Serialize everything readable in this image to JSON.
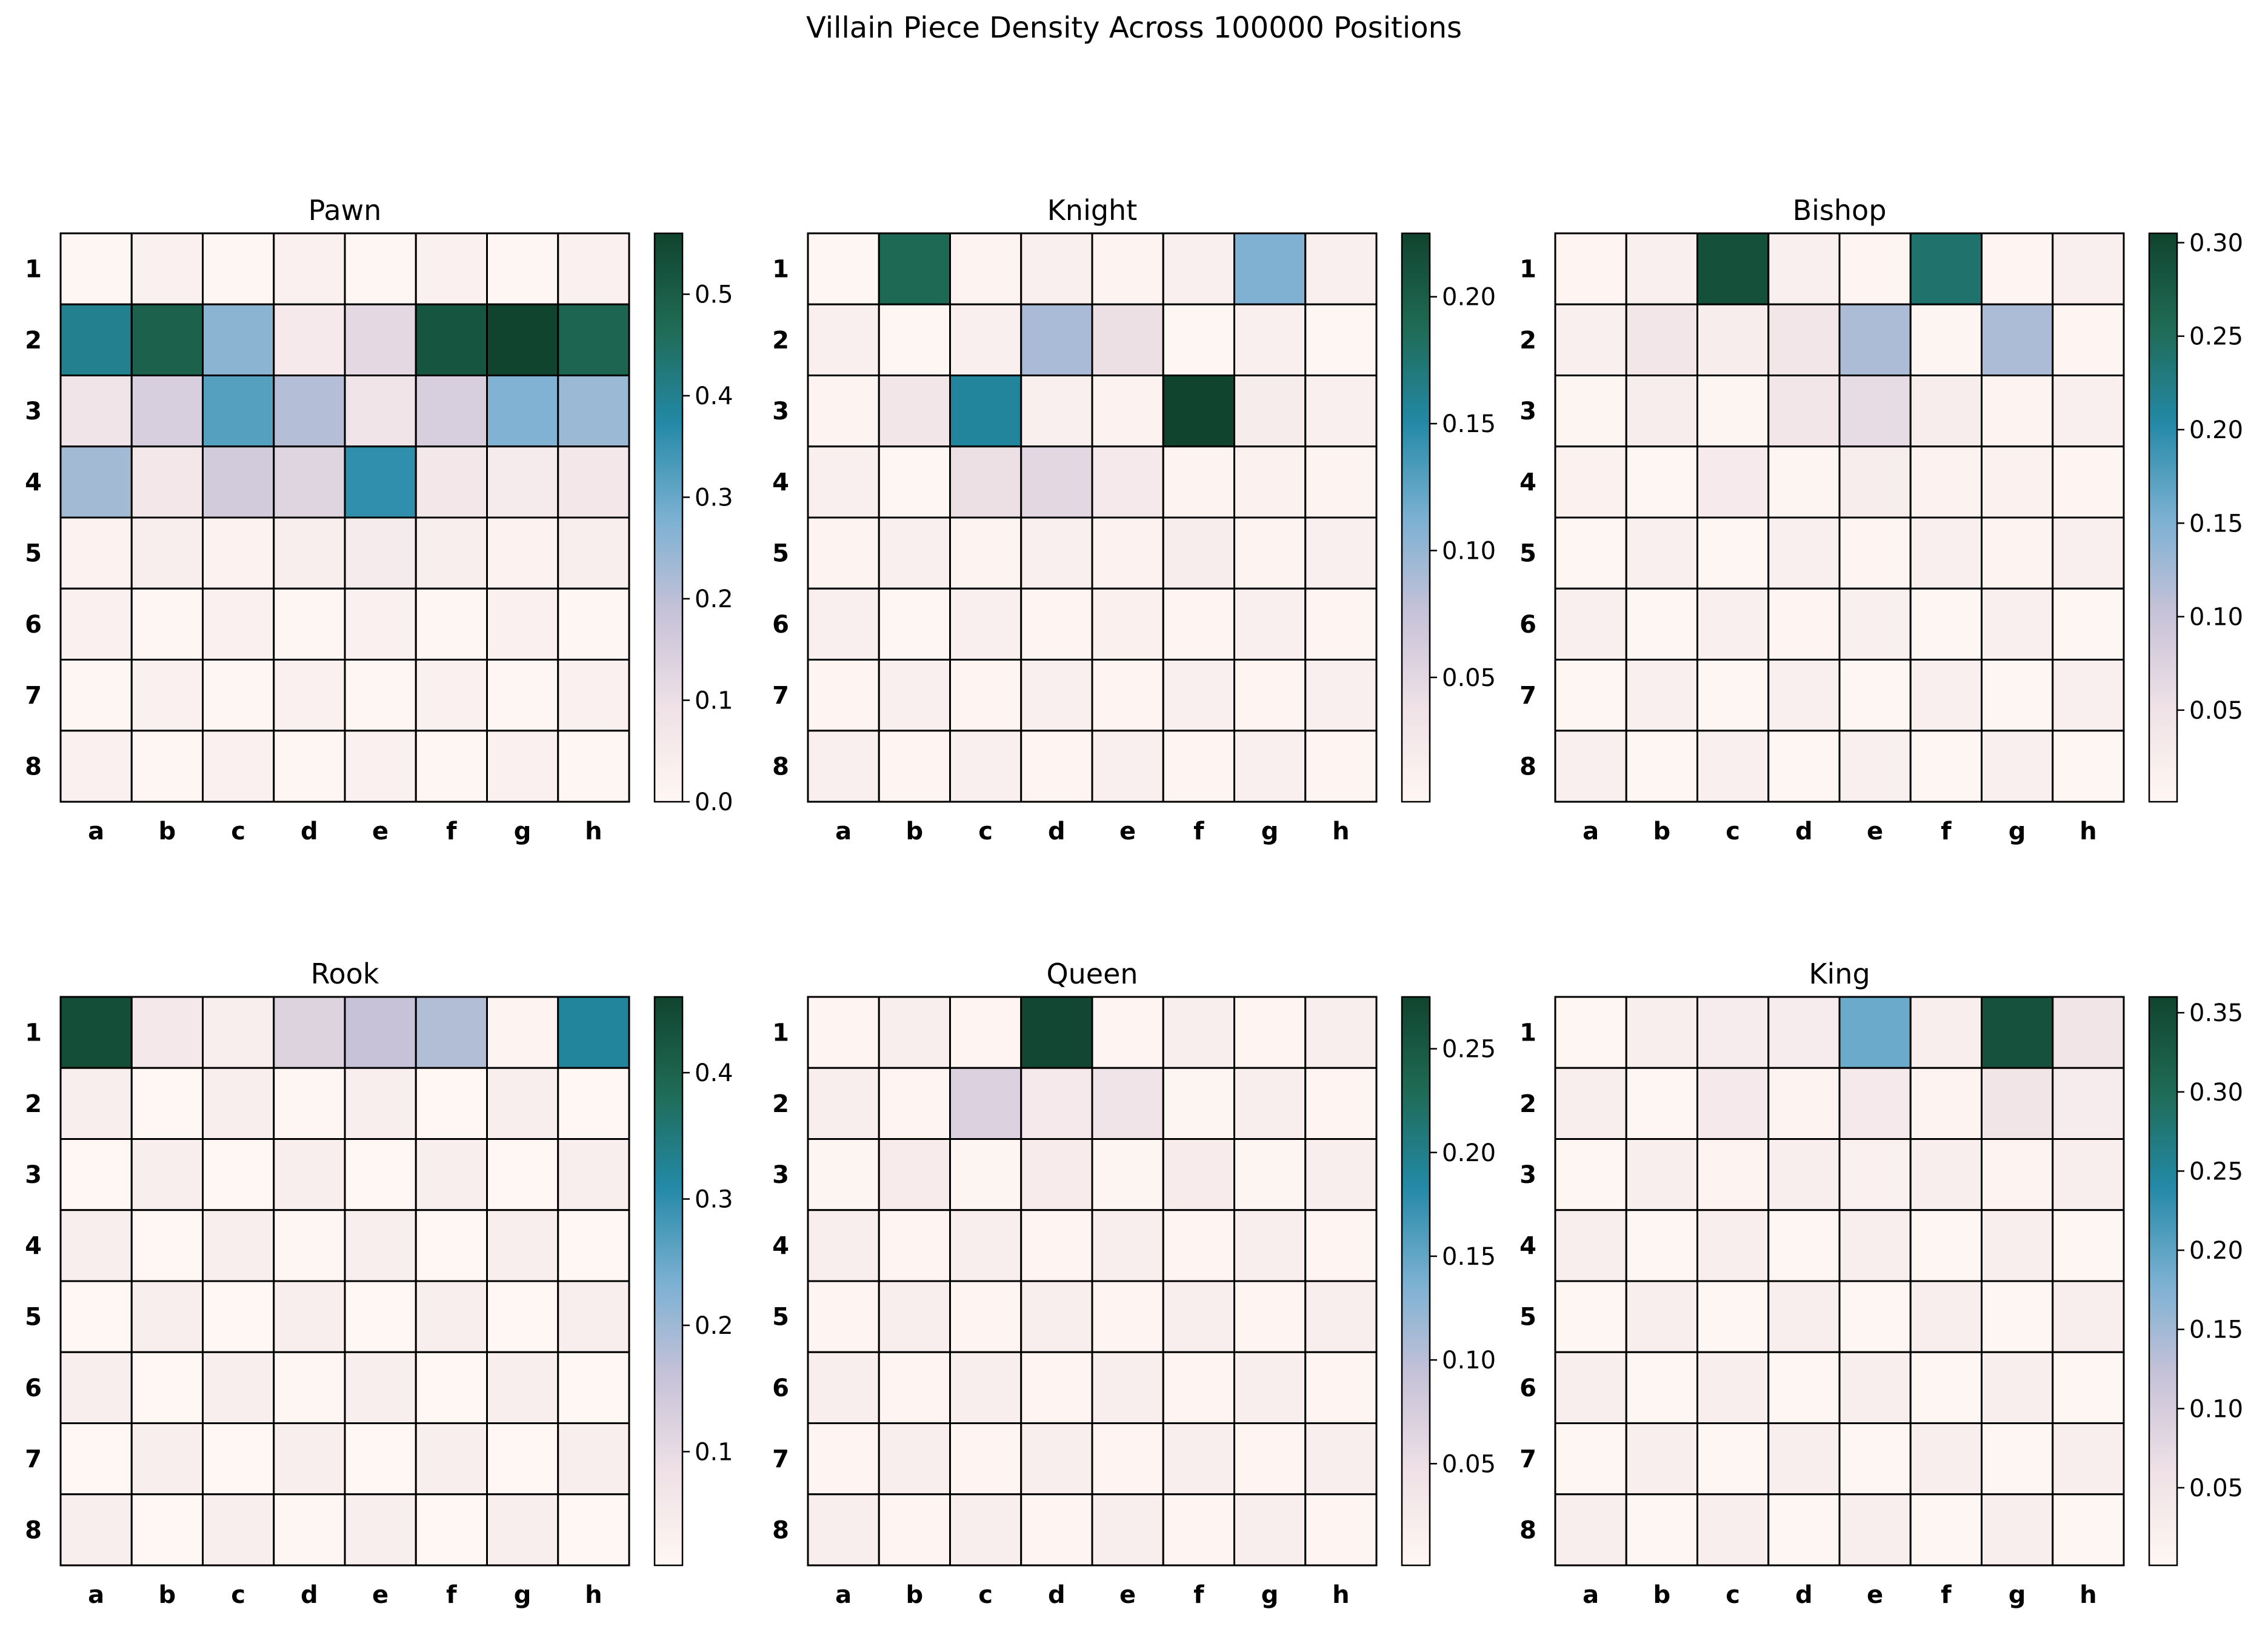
{
  "title": "Villain Piece Density Across 100000 Positions",
  "colormap": [
    "#fff7f3",
    "#efe1e6",
    "#c7c2d8",
    "#7ab0d2",
    "#2389a6",
    "#1f6b55",
    "#10442f"
  ],
  "chart_data": [
    {
      "type": "heatmap",
      "title": "Pawn",
      "x_labels": [
        "a",
        "b",
        "c",
        "d",
        "e",
        "f",
        "g",
        "h"
      ],
      "y_labels": [
        "1",
        "2",
        "3",
        "4",
        "5",
        "6",
        "7",
        "8"
      ],
      "vmin": 0.0,
      "vmax": 0.56,
      "colorbar_ticks": [
        "0.0",
        "0.1",
        "0.2",
        "0.3",
        "0.4",
        "0.5"
      ],
      "values": [
        [
          0.005,
          0.03,
          0.005,
          0.03,
          0.005,
          0.03,
          0.005,
          0.03
        ],
        [
          0.4,
          0.49,
          0.26,
          0.06,
          0.12,
          0.52,
          0.56,
          0.48
        ],
        [
          0.08,
          0.15,
          0.32,
          0.21,
          0.08,
          0.15,
          0.27,
          0.24
        ],
        [
          0.23,
          0.07,
          0.16,
          0.13,
          0.36,
          0.07,
          0.05,
          0.07
        ],
        [
          0.02,
          0.04,
          0.02,
          0.04,
          0.05,
          0.04,
          0.02,
          0.04
        ],
        [
          0.03,
          0.005,
          0.03,
          0.005,
          0.03,
          0.005,
          0.03,
          0.005
        ],
        [
          0.005,
          0.03,
          0.005,
          0.03,
          0.005,
          0.03,
          0.005,
          0.03
        ],
        [
          0.03,
          0.005,
          0.03,
          0.005,
          0.03,
          0.005,
          0.03,
          0.005
        ]
      ]
    },
    {
      "type": "heatmap",
      "title": "Knight",
      "x_labels": [
        "a",
        "b",
        "c",
        "d",
        "e",
        "f",
        "g",
        "h"
      ],
      "y_labels": [
        "1",
        "2",
        "3",
        "4",
        "5",
        "6",
        "7",
        "8"
      ],
      "vmin": 0.001,
      "vmax": 0.225,
      "colorbar_ticks": [
        "0.05",
        "0.10",
        "0.15",
        "0.20"
      ],
      "values": [
        [
          0.003,
          0.19,
          0.006,
          0.015,
          0.006,
          0.015,
          0.11,
          0.015
        ],
        [
          0.015,
          0.003,
          0.015,
          0.09,
          0.04,
          0.003,
          0.015,
          0.003
        ],
        [
          0.006,
          0.03,
          0.155,
          0.015,
          0.009,
          0.225,
          0.02,
          0.015
        ],
        [
          0.015,
          0.003,
          0.04,
          0.05,
          0.025,
          0.006,
          0.01,
          0.006
        ],
        [
          0.006,
          0.015,
          0.006,
          0.015,
          0.009,
          0.018,
          0.006,
          0.015
        ],
        [
          0.015,
          0.003,
          0.015,
          0.004,
          0.012,
          0.004,
          0.015,
          0.004
        ],
        [
          0.004,
          0.015,
          0.004,
          0.015,
          0.004,
          0.015,
          0.004,
          0.015
        ],
        [
          0.015,
          0.004,
          0.015,
          0.004,
          0.015,
          0.004,
          0.015,
          0.004
        ]
      ]
    },
    {
      "type": "heatmap",
      "title": "Bishop",
      "x_labels": [
        "a",
        "b",
        "c",
        "d",
        "e",
        "f",
        "g",
        "h"
      ],
      "y_labels": [
        "1",
        "2",
        "3",
        "4",
        "5",
        "6",
        "7",
        "8"
      ],
      "vmin": 0.001,
      "vmax": 0.305,
      "colorbar_ticks": [
        "0.05",
        "0.10",
        "0.15",
        "0.20",
        "0.25",
        "0.30"
      ],
      "values": [
        [
          0.005,
          0.02,
          0.29,
          0.02,
          0.005,
          0.24,
          0.005,
          0.02
        ],
        [
          0.02,
          0.04,
          0.025,
          0.04,
          0.12,
          0.006,
          0.12,
          0.005
        ],
        [
          0.006,
          0.025,
          0.006,
          0.04,
          0.06,
          0.025,
          0.008,
          0.02
        ],
        [
          0.015,
          0.004,
          0.03,
          0.006,
          0.025,
          0.01,
          0.015,
          0.005
        ],
        [
          0.004,
          0.02,
          0.004,
          0.02,
          0.005,
          0.02,
          0.008,
          0.02
        ],
        [
          0.02,
          0.004,
          0.02,
          0.005,
          0.02,
          0.004,
          0.02,
          0.004
        ],
        [
          0.004,
          0.02,
          0.004,
          0.02,
          0.004,
          0.02,
          0.004,
          0.02
        ],
        [
          0.02,
          0.004,
          0.02,
          0.004,
          0.02,
          0.004,
          0.02,
          0.004
        ]
      ]
    },
    {
      "type": "heatmap",
      "title": "Rook",
      "x_labels": [
        "a",
        "b",
        "c",
        "d",
        "e",
        "f",
        "g",
        "h"
      ],
      "y_labels": [
        "1",
        "2",
        "3",
        "4",
        "5",
        "6",
        "7",
        "8"
      ],
      "vmin": 0.01,
      "vmax": 0.46,
      "colorbar_ticks": [
        "0.1",
        "0.2",
        "0.3",
        "0.4"
      ],
      "values": [
        [
          0.44,
          0.06,
          0.04,
          0.12,
          0.16,
          0.18,
          0.02,
          0.32
        ],
        [
          0.04,
          0.01,
          0.04,
          0.015,
          0.04,
          0.01,
          0.04,
          0.01
        ],
        [
          0.01,
          0.04,
          0.01,
          0.04,
          0.01,
          0.04,
          0.01,
          0.04
        ],
        [
          0.04,
          0.01,
          0.04,
          0.015,
          0.04,
          0.01,
          0.04,
          0.01
        ],
        [
          0.01,
          0.04,
          0.01,
          0.04,
          0.01,
          0.04,
          0.01,
          0.04
        ],
        [
          0.04,
          0.01,
          0.04,
          0.015,
          0.04,
          0.01,
          0.04,
          0.01
        ],
        [
          0.01,
          0.04,
          0.01,
          0.04,
          0.01,
          0.04,
          0.01,
          0.04
        ],
        [
          0.04,
          0.01,
          0.04,
          0.015,
          0.04,
          0.01,
          0.04,
          0.01
        ]
      ]
    },
    {
      "type": "heatmap",
      "title": "Queen",
      "x_labels": [
        "a",
        "b",
        "c",
        "d",
        "e",
        "f",
        "g",
        "h"
      ],
      "y_labels": [
        "1",
        "2",
        "3",
        "4",
        "5",
        "6",
        "7",
        "8"
      ],
      "vmin": 0.001,
      "vmax": 0.275,
      "colorbar_ticks": [
        "0.05",
        "0.10",
        "0.15",
        "0.20",
        "0.25"
      ],
      "values": [
        [
          0.005,
          0.02,
          0.005,
          0.27,
          0.005,
          0.02,
          0.005,
          0.02
        ],
        [
          0.02,
          0.005,
          0.07,
          0.03,
          0.04,
          0.006,
          0.02,
          0.005
        ],
        [
          0.006,
          0.025,
          0.006,
          0.025,
          0.006,
          0.025,
          0.006,
          0.02
        ],
        [
          0.02,
          0.005,
          0.02,
          0.005,
          0.02,
          0.005,
          0.02,
          0.005
        ],
        [
          0.005,
          0.02,
          0.005,
          0.02,
          0.005,
          0.02,
          0.005,
          0.02
        ],
        [
          0.02,
          0.005,
          0.02,
          0.005,
          0.02,
          0.005,
          0.02,
          0.005
        ],
        [
          0.005,
          0.02,
          0.005,
          0.02,
          0.005,
          0.02,
          0.005,
          0.02
        ],
        [
          0.02,
          0.005,
          0.02,
          0.005,
          0.02,
          0.005,
          0.02,
          0.005
        ]
      ]
    },
    {
      "type": "heatmap",
      "title": "King",
      "x_labels": [
        "a",
        "b",
        "c",
        "d",
        "e",
        "f",
        "g",
        "h"
      ],
      "y_labels": [
        "1",
        "2",
        "3",
        "4",
        "5",
        "6",
        "7",
        "8"
      ],
      "vmin": 0.001,
      "vmax": 0.36,
      "colorbar_ticks": [
        "0.05",
        "0.10",
        "0.15",
        "0.20",
        "0.25",
        "0.30",
        "0.35"
      ],
      "values": [
        [
          0.005,
          0.025,
          0.03,
          0.03,
          0.19,
          0.025,
          0.34,
          0.05
        ],
        [
          0.025,
          0.005,
          0.04,
          0.01,
          0.04,
          0.01,
          0.05,
          0.03
        ],
        [
          0.005,
          0.025,
          0.008,
          0.025,
          0.02,
          0.025,
          0.008,
          0.025
        ],
        [
          0.025,
          0.005,
          0.025,
          0.005,
          0.025,
          0.005,
          0.025,
          0.005
        ],
        [
          0.005,
          0.025,
          0.005,
          0.025,
          0.005,
          0.025,
          0.005,
          0.025
        ],
        [
          0.025,
          0.005,
          0.025,
          0.005,
          0.025,
          0.005,
          0.025,
          0.005
        ],
        [
          0.005,
          0.025,
          0.005,
          0.025,
          0.005,
          0.025,
          0.005,
          0.025
        ],
        [
          0.025,
          0.005,
          0.025,
          0.005,
          0.025,
          0.005,
          0.025,
          0.005
        ]
      ]
    }
  ]
}
